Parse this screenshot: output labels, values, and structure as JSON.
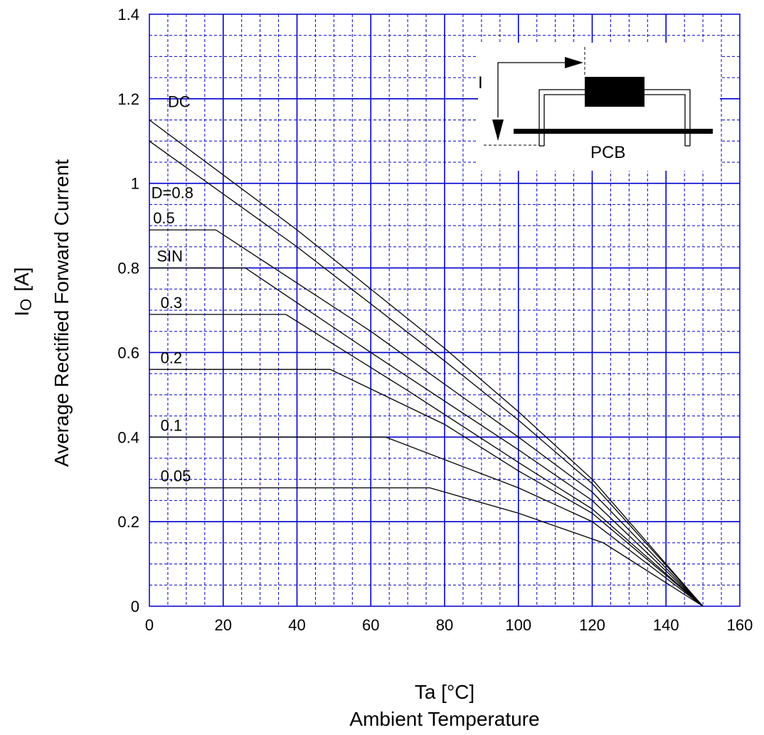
{
  "chart_data": {
    "type": "line",
    "xlabel_symbol": "Ta  [°C]",
    "xlabel": "Ambient Temperature",
    "ylabel_symbol": "I",
    "ylabel_subscript": "O",
    "ylabel_unit": "[A]",
    "ylabel": "Average Rectified Forward Current",
    "xlim": [
      0,
      160
    ],
    "ylim": [
      0,
      1.4
    ],
    "xticks": [
      "0",
      "20",
      "40",
      "60",
      "80",
      "100",
      "120",
      "140",
      "160"
    ],
    "yticks": [
      "0",
      "0.2",
      "0.4",
      "0.6",
      "0.8",
      "1",
      "1.2",
      "1.4"
    ],
    "grid": true,
    "grid_color": "#0000cc",
    "line_color": "#000000",
    "series": [
      {
        "name": "DC",
        "points": [
          [
            0,
            1.15
          ],
          [
            40,
            0.89
          ],
          [
            80,
            0.61
          ],
          [
            100,
            0.46
          ],
          [
            120,
            0.3
          ],
          [
            150,
            0
          ]
        ]
      },
      {
        "name": "D=0.8",
        "points": [
          [
            0,
            1.1
          ],
          [
            40,
            0.85
          ],
          [
            80,
            0.58
          ],
          [
            100,
            0.44
          ],
          [
            120,
            0.29
          ],
          [
            150,
            0
          ]
        ]
      },
      {
        "name": "0.5",
        "points": [
          [
            0,
            0.89
          ],
          [
            18,
            0.89
          ],
          [
            60,
            0.65
          ],
          [
            100,
            0.4
          ],
          [
            120,
            0.27
          ],
          [
            150,
            0
          ]
        ]
      },
      {
        "name": "SIN",
        "points": [
          [
            0,
            0.8
          ],
          [
            26,
            0.8
          ],
          [
            60,
            0.6
          ],
          [
            100,
            0.37
          ],
          [
            120,
            0.25
          ],
          [
            150,
            0
          ]
        ]
      },
      {
        "name": "0.3",
        "points": [
          [
            0,
            0.69
          ],
          [
            37,
            0.69
          ],
          [
            70,
            0.51
          ],
          [
            100,
            0.34
          ],
          [
            120,
            0.23
          ],
          [
            150,
            0
          ]
        ]
      },
      {
        "name": "0.2",
        "points": [
          [
            0,
            0.56
          ],
          [
            49,
            0.56
          ],
          [
            80,
            0.43
          ],
          [
            100,
            0.32
          ],
          [
            120,
            0.22
          ],
          [
            150,
            0
          ]
        ]
      },
      {
        "name": "0.1",
        "points": [
          [
            0,
            0.4
          ],
          [
            64,
            0.4
          ],
          [
            100,
            0.28
          ],
          [
            120,
            0.2
          ],
          [
            150,
            0
          ]
        ]
      },
      {
        "name": "0.05",
        "points": [
          [
            0,
            0.28
          ],
          [
            76,
            0.28
          ],
          [
            100,
            0.22
          ],
          [
            123,
            0.15
          ],
          [
            150,
            0
          ]
        ]
      }
    ],
    "curve_labels": [
      {
        "text": "DC",
        "x": 5,
        "y": 1.18
      },
      {
        "text": "D=0.8",
        "x": 0.5,
        "y": 0.965
      },
      {
        "text": "0.5",
        "x": 1,
        "y": 0.905
      },
      {
        "text": "SIN",
        "x": 2,
        "y": 0.815
      },
      {
        "text": "0.3",
        "x": 3,
        "y": 0.705
      },
      {
        "text": "0.2",
        "x": 3,
        "y": 0.575
      },
      {
        "text": "0.1",
        "x": 3,
        "y": 0.415
      },
      {
        "text": "0.05",
        "x": 3,
        "y": 0.295
      }
    ]
  },
  "inset": {
    "current_label": "I",
    "board_label": "PCB"
  }
}
